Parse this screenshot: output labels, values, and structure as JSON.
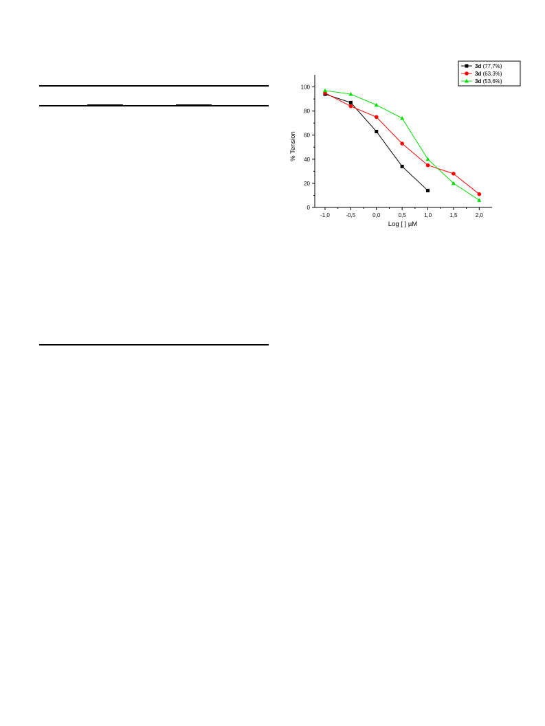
{
  "chart_data": {
    "type": "line",
    "xlabel": "Log [ ] µM",
    "ylabel": "% Tension",
    "xlim": [
      -1.2,
      2.25
    ],
    "ylim": [
      0,
      110
    ],
    "x_ticks": [
      -1.0,
      -0.5,
      0.0,
      0.5,
      1.0,
      1.5,
      2.0
    ],
    "x_tick_labels": [
      "-1,0",
      "-0,5",
      "0,0",
      "0,5",
      "1,0",
      "1,5",
      "2,0"
    ],
    "y_ticks": [
      0,
      20,
      40,
      60,
      80,
      100
    ],
    "y_tick_labels": [
      "0",
      "20",
      "40",
      "60",
      "80",
      "100"
    ],
    "grid": false,
    "legend_position": "top-right",
    "series": [
      {
        "name_bold": "3d",
        "name_rest": " (77,7%)",
        "color": "#000000",
        "marker": "square",
        "x": [
          -1.0,
          -0.5,
          0.0,
          0.5,
          1.0
        ],
        "y": [
          94,
          87,
          63,
          34,
          14
        ]
      },
      {
        "name_bold": "3d",
        "name_rest": " (63,3%)",
        "color": "#ff0000",
        "marker": "circle",
        "x": [
          -1.0,
          -0.5,
          0.0,
          0.5,
          1.0,
          1.5,
          2.0
        ],
        "y": [
          95,
          84,
          75,
          53,
          35,
          28,
          11
        ]
      },
      {
        "name_bold": "3d",
        "name_rest": " (53,6%)",
        "color": "#00dd00",
        "marker": "triangle",
        "x": [
          -1.0,
          -0.5,
          0.0,
          0.5,
          1.0,
          1.5,
          2.0
        ],
        "y": [
          97,
          94,
          85,
          74,
          40,
          20,
          6
        ]
      }
    ]
  }
}
